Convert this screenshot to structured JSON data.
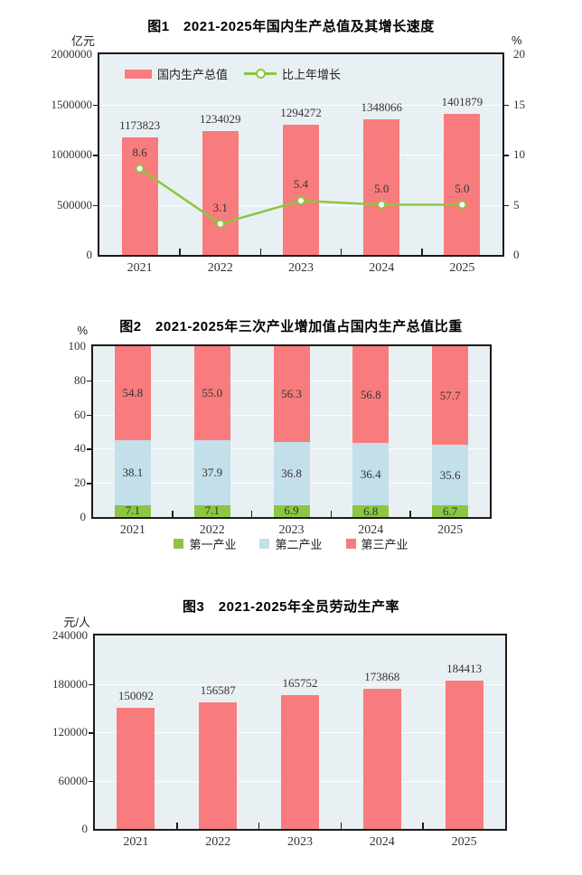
{
  "colors": {
    "bar_red": "#F87C7D",
    "line_green": "#8CC642",
    "primary_green": "#8CC642",
    "secondary_blue": "#C3DFE9",
    "tertiary_red": "#F87C7D",
    "plot_background": "#E9F0F3",
    "axis": "#1A1A1A",
    "gridline": "#FFFFFF",
    "label_text": "#333333"
  },
  "chart_data": [
    {
      "type": "bar+line",
      "title": "图1　2021-2025年国内生产总值及其增长速度",
      "categories": [
        "2021",
        "2022",
        "2023",
        "2024",
        "2025"
      ],
      "left_axis": {
        "unit": "亿元",
        "min": 0,
        "max": 2000000,
        "tick_values": [
          0,
          500000,
          1000000,
          1500000,
          2000000
        ],
        "tick_labels": [
          "0",
          "500000",
          "1000000",
          "1500000",
          "2000000"
        ]
      },
      "right_axis": {
        "unit": "%",
        "min": 0,
        "max": 20,
        "tick_values": [
          0,
          5,
          10,
          15,
          20
        ],
        "tick_labels": [
          "0",
          "5",
          "10",
          "15",
          "20"
        ]
      },
      "grid": true,
      "legend_position": "top-left-inside",
      "series": [
        {
          "name": "国内生产总值",
          "type": "bar",
          "axis": "left",
          "color": "#F87C7D",
          "values": [
            1173823,
            1234029,
            1294272,
            1348066,
            1401879
          ],
          "labels": [
            "1173823",
            "1234029",
            "1294272",
            "1348066",
            "1401879"
          ]
        },
        {
          "name": "比上年增长",
          "type": "line",
          "axis": "right",
          "color": "#8CC642",
          "values": [
            8.6,
            3.1,
            5.4,
            5.0,
            5.0
          ],
          "labels": [
            "8.6",
            "3.1",
            "5.4",
            "5.0",
            "5.0"
          ]
        }
      ]
    },
    {
      "type": "stacked-bar",
      "title": "图2　2021-2025年三次产业增加值占国内生产总值比重",
      "categories": [
        "2021",
        "2022",
        "2023",
        "2024",
        "2025"
      ],
      "left_axis": {
        "unit": "%",
        "min": 0,
        "max": 100,
        "tick_values": [
          0,
          20,
          40,
          60,
          80,
          100
        ],
        "tick_labels": [
          "0",
          "20",
          "40",
          "60",
          "80",
          "100"
        ]
      },
      "grid": true,
      "legend_position": "bottom",
      "series": [
        {
          "name": "第一产业",
          "color": "#8CC642",
          "values": [
            7.1,
            7.1,
            6.9,
            6.8,
            6.7
          ],
          "labels": [
            "7.1",
            "7.1",
            "6.9",
            "6.8",
            "6.7"
          ]
        },
        {
          "name": "第二产业",
          "color": "#C3DFE9",
          "values": [
            38.1,
            37.9,
            36.8,
            36.4,
            35.6
          ],
          "labels": [
            "38.1",
            "37.9",
            "36.8",
            "36.4",
            "35.6"
          ]
        },
        {
          "name": "第三产业",
          "color": "#F87C7D",
          "values": [
            54.8,
            55.0,
            56.3,
            56.8,
            57.7
          ],
          "labels": [
            "54.8",
            "55.0",
            "56.3",
            "56.8",
            "57.7"
          ]
        }
      ]
    },
    {
      "type": "bar",
      "title": "图3　2021-2025年全员劳动生产率",
      "categories": [
        "2021",
        "2022",
        "2023",
        "2024",
        "2025"
      ],
      "left_axis": {
        "unit": "元/人",
        "min": 0,
        "max": 240000,
        "tick_values": [
          0,
          60000,
          120000,
          180000,
          240000
        ],
        "tick_labels": [
          "0",
          "60000",
          "120000",
          "180000",
          "240000"
        ]
      },
      "grid": true,
      "legend_position": "none",
      "series": [
        {
          "name": "全员劳动生产率",
          "type": "bar",
          "color": "#F87C7D",
          "values": [
            150092,
            156587,
            165752,
            173868,
            184413
          ],
          "labels": [
            "150092",
            "156587",
            "165752",
            "173868",
            "184413"
          ]
        }
      ]
    }
  ]
}
